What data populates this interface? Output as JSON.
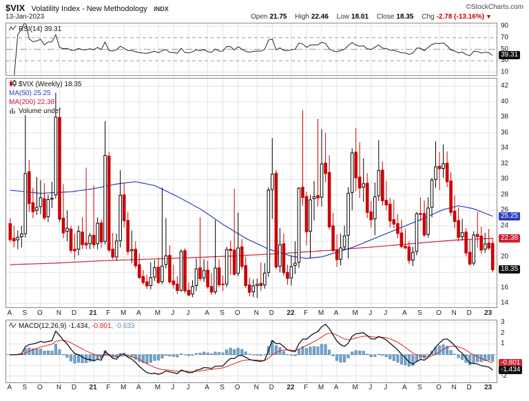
{
  "header": {
    "symbol": "$VIX",
    "name": "Volatility Index - New Methodology",
    "exchange": "INDX",
    "copyright": "©StockCharts.com",
    "date": "13-Jan-2023",
    "quote": {
      "open": {
        "label": "Open",
        "value": "21.75"
      },
      "high": {
        "label": "High",
        "value": "22.46"
      },
      "low": {
        "label": "Low",
        "value": "18.01"
      },
      "close": {
        "label": "Close",
        "value": "18.35"
      },
      "chg": {
        "label": "Chg",
        "value": "-2.78 (-13.16%)",
        "arrow": "▼"
      }
    }
  },
  "panels": {
    "rsi": {
      "legend": "RSI(14) 39.31",
      "axis": [
        90,
        70,
        50,
        30,
        10
      ],
      "levels_dashed": [
        70,
        30
      ],
      "level_dashdot": 50,
      "badge": {
        "text": "39.31",
        "value": 39.31,
        "color": "#111111"
      },
      "ylim": [
        5,
        95
      ]
    },
    "main": {
      "legend_symbol": "$VIX (Weekly) 18.35",
      "legend_ma50": "MA(50) 25.25",
      "legend_ma200": "MA(200) 22.38",
      "legend_volume": "Volume undef",
      "axis": [
        42,
        40,
        38,
        36,
        34,
        32,
        30,
        28,
        26,
        24,
        22,
        20,
        18,
        16,
        14
      ],
      "badges": [
        {
          "text": "25.25",
          "value": 25.25,
          "color": "#2b3fbf"
        },
        {
          "text": "22.38",
          "value": 22.38,
          "color": "#cc2233"
        },
        {
          "text": "18.35",
          "value": 18.35,
          "color": "#111111"
        }
      ],
      "ylim": [
        13.5,
        43
      ]
    },
    "macd": {
      "legend_name": "MACD(12,26,9)",
      "legend_v1": "-1.434,",
      "legend_v2": "-0.801,",
      "legend_v3": "-0.633",
      "axis": [
        3,
        2,
        1,
        -2
      ],
      "badges": [
        {
          "text": "-0.801",
          "value": -0.801,
          "color": "#cc2233"
        },
        {
          "text": "-1.434",
          "value": -1.434,
          "color": "#111111"
        }
      ],
      "ylim": [
        -2.6,
        3.2
      ]
    }
  },
  "xaxis": {
    "ticks": [
      {
        "label": "A",
        "i": 0
      },
      {
        "label": "S",
        "i": 4
      },
      {
        "label": "O",
        "i": 8
      },
      {
        "label": "N",
        "i": 13
      },
      {
        "label": "D",
        "i": 17
      },
      {
        "label": "21",
        "i": 22,
        "bold": true
      },
      {
        "label": "F",
        "i": 26
      },
      {
        "label": "M",
        "i": 30
      },
      {
        "label": "A",
        "i": 34
      },
      {
        "label": "M",
        "i": 39
      },
      {
        "label": "J",
        "i": 43
      },
      {
        "label": "J",
        "i": 47
      },
      {
        "label": "A",
        "i": 52
      },
      {
        "label": "S",
        "i": 56
      },
      {
        "label": "O",
        "i": 60
      },
      {
        "label": "N",
        "i": 65
      },
      {
        "label": "D",
        "i": 69
      },
      {
        "label": "22",
        "i": 74,
        "bold": true
      },
      {
        "label": "F",
        "i": 78
      },
      {
        "label": "M",
        "i": 82
      },
      {
        "label": "A",
        "i": 86
      },
      {
        "label": "M",
        "i": 91
      },
      {
        "label": "J",
        "i": 95
      },
      {
        "label": "J",
        "i": 99
      },
      {
        "label": "A",
        "i": 104
      },
      {
        "label": "S",
        "i": 108
      },
      {
        "label": "O",
        "i": 113
      },
      {
        "label": "N",
        "i": 117
      },
      {
        "label": "D",
        "i": 121
      },
      {
        "label": "23",
        "i": 126,
        "bold": true
      }
    ]
  },
  "colors": {
    "up": "#000000",
    "down": "#cc0000",
    "ma50": "#2b3fbf",
    "ma200": "#cc2233",
    "rsi": "#222222",
    "macd_line": "#111111",
    "macd_signal": "#dd2222",
    "macd_hist": "#72a3cc",
    "macd_hist_edge": "#4d7ea8",
    "macd_hist_text": "#5b90bd",
    "grid": "#e3e3e3",
    "level": "#999999"
  },
  "chart_data": {
    "type": "candlestick",
    "title": "$VIX Volatility Index - New Methodology (Weekly)",
    "x_range": "Aug-2020 to 13-Jan-2023, weekly bars",
    "series_legend": [
      "$VIX (Weekly) 18.35",
      "MA(50) 25.25",
      "MA(200) 22.38",
      "Volume undef",
      "RSI(14) 39.31",
      "MACD(12,26,9) -1.434, -0.801, -0.633"
    ],
    "ylim": [
      13.5,
      43
    ],
    "ohlc": [
      [
        24.3,
        25.0,
        21.9,
        22.21
      ],
      [
        22.4,
        24.0,
        21.2,
        22.05
      ],
      [
        22.2,
        23.4,
        21.0,
        22.54
      ],
      [
        22.6,
        24.0,
        21.2,
        22.96
      ],
      [
        23.0,
        38.28,
        22.5,
        30.75
      ],
      [
        31.0,
        32.5,
        25.8,
        26.87
      ],
      [
        27.0,
        28.9,
        25.0,
        25.83
      ],
      [
        26.0,
        30.3,
        25.4,
        26.38
      ],
      [
        26.5,
        29.9,
        25.5,
        27.63
      ],
      [
        27.5,
        29.5,
        24.8,
        25.0
      ],
      [
        25.2,
        28.0,
        24.5,
        27.41
      ],
      [
        27.5,
        29.7,
        26.3,
        27.55
      ],
      [
        28.0,
        41.16,
        27.5,
        38.02
      ],
      [
        38.0,
        38.8,
        24.5,
        24.86
      ],
      [
        25.0,
        29.4,
        22.4,
        23.1
      ],
      [
        23.3,
        26.0,
        22.0,
        23.7
      ],
      [
        23.6,
        24.0,
        20.5,
        20.84
      ],
      [
        21.0,
        23.0,
        19.7,
        20.79
      ],
      [
        21.0,
        24.0,
        20.2,
        23.31
      ],
      [
        23.2,
        25.1,
        21.0,
        21.57
      ],
      [
        21.8,
        31.5,
        21.0,
        21.53
      ],
      [
        21.7,
        23.1,
        21.0,
        22.75
      ],
      [
        22.8,
        29.2,
        21.1,
        21.56
      ],
      [
        21.7,
        25.1,
        21.0,
        24.34
      ],
      [
        24.4,
        24.8,
        21.2,
        21.91
      ],
      [
        22.0,
        37.51,
        21.6,
        33.09
      ],
      [
        33.0,
        33.5,
        20.6,
        20.87
      ],
      [
        21.0,
        23.1,
        19.7,
        19.97
      ],
      [
        20.0,
        23.0,
        19.5,
        22.05
      ],
      [
        22.1,
        31.2,
        21.2,
        27.95
      ],
      [
        28.0,
        29.6,
        23.8,
        24.66
      ],
      [
        24.7,
        25.8,
        20.3,
        20.69
      ],
      [
        20.8,
        23.4,
        19.2,
        20.95
      ],
      [
        21.0,
        22.0,
        18.5,
        18.86
      ],
      [
        19.0,
        20.4,
        17.2,
        17.33
      ],
      [
        17.5,
        18.3,
        16.4,
        16.69
      ],
      [
        16.8,
        17.7,
        15.9,
        16.25
      ],
      [
        16.3,
        19.3,
        15.8,
        17.33
      ],
      [
        17.4,
        19.6,
        16.9,
        18.61
      ],
      [
        18.7,
        19.9,
        16.5,
        16.69
      ],
      [
        16.8,
        28.93,
        16.5,
        18.81
      ],
      [
        19.0,
        25.0,
        18.5,
        20.15
      ],
      [
        20.2,
        21.5,
        16.5,
        16.76
      ],
      [
        16.9,
        19.0,
        15.9,
        16.42
      ],
      [
        16.5,
        17.5,
        15.2,
        15.65
      ],
      [
        15.7,
        21.0,
        15.5,
        20.7
      ],
      [
        20.8,
        21.1,
        15.3,
        15.62
      ],
      [
        15.7,
        16.7,
        14.9,
        15.07
      ],
      [
        15.2,
        17.0,
        14.8,
        16.18
      ],
      [
        16.3,
        19.8,
        15.6,
        18.45
      ],
      [
        18.6,
        25.09,
        16.9,
        17.2
      ],
      [
        17.3,
        19.7,
        16.8,
        18.24
      ],
      [
        18.3,
        19.5,
        15.9,
        16.15
      ],
      [
        16.2,
        17.9,
        15.1,
        15.45
      ],
      [
        15.5,
        24.74,
        15.2,
        18.56
      ],
      [
        18.6,
        19.7,
        16.1,
        16.39
      ],
      [
        16.5,
        17.6,
        15.6,
        16.41
      ],
      [
        16.5,
        21.3,
        16.1,
        20.95
      ],
      [
        21.0,
        22.1,
        17.7,
        20.81
      ],
      [
        20.9,
        28.79,
        17.6,
        17.75
      ],
      [
        17.9,
        25.7,
        17.5,
        21.15
      ],
      [
        21.3,
        22.3,
        18.4,
        18.77
      ],
      [
        18.9,
        20.0,
        16.0,
        16.3
      ],
      [
        16.4,
        17.3,
        14.9,
        15.43
      ],
      [
        15.5,
        17.1,
        14.8,
        16.26
      ],
      [
        16.3,
        17.2,
        14.7,
        16.48
      ],
      [
        16.6,
        19.3,
        15.6,
        16.29
      ],
      [
        16.4,
        19.2,
        15.9,
        17.91
      ],
      [
        18.0,
        28.99,
        17.4,
        28.62
      ],
      [
        28.7,
        35.32,
        24.9,
        30.67
      ],
      [
        30.8,
        31.2,
        18.4,
        18.69
      ],
      [
        18.8,
        23.7,
        18.0,
        21.57
      ],
      [
        21.7,
        23.0,
        17.6,
        17.96
      ],
      [
        18.0,
        19.0,
        16.4,
        17.22
      ],
      [
        17.3,
        20.2,
        16.3,
        18.76
      ],
      [
        18.9,
        22.0,
        17.8,
        19.19
      ],
      [
        19.3,
        29.0,
        18.6,
        28.85
      ],
      [
        29.0,
        38.94,
        26.6,
        27.66
      ],
      [
        27.8,
        28.4,
        21.5,
        23.22
      ],
      [
        23.3,
        28.0,
        19.8,
        27.36
      ],
      [
        27.5,
        29.8,
        24.7,
        27.75
      ],
      [
        27.9,
        37.79,
        26.5,
        27.59
      ],
      [
        27.7,
        36.5,
        26.5,
        31.98
      ],
      [
        32.1,
        36.0,
        29.6,
        30.75
      ],
      [
        30.9,
        33.1,
        23.5,
        23.87
      ],
      [
        24.0,
        25.7,
        20.6,
        20.81
      ],
      [
        20.9,
        22.9,
        18.7,
        19.63
      ],
      [
        19.7,
        23.0,
        18.9,
        21.16
      ],
      [
        21.3,
        24.0,
        20.9,
        22.7
      ],
      [
        22.8,
        29.0,
        19.8,
        28.21
      ],
      [
        28.3,
        34.0,
        26.0,
        33.4
      ],
      [
        33.5,
        36.64,
        28.5,
        30.19
      ],
      [
        30.3,
        34.8,
        27.6,
        28.87
      ],
      [
        29.0,
        32.7,
        27.1,
        29.43
      ],
      [
        29.5,
        30.8,
        25.0,
        25.72
      ],
      [
        25.8,
        27.2,
        23.8,
        24.79
      ],
      [
        24.9,
        29.6,
        22.8,
        27.75
      ],
      [
        27.9,
        35.05,
        27.2,
        31.13
      ],
      [
        31.2,
        32.3,
        26.6,
        27.23
      ],
      [
        27.3,
        29.8,
        26.0,
        26.7
      ],
      [
        26.8,
        27.6,
        23.8,
        24.64
      ],
      [
        24.8,
        27.4,
        23.7,
        24.23
      ],
      [
        24.3,
        25.5,
        22.4,
        23.03
      ],
      [
        23.1,
        24.8,
        21.1,
        21.33
      ],
      [
        21.4,
        23.6,
        21.0,
        21.15
      ],
      [
        21.3,
        22.0,
        19.1,
        19.53
      ],
      [
        19.6,
        21.3,
        18.8,
        20.6
      ],
      [
        20.7,
        25.8,
        20.2,
        25.56
      ],
      [
        25.6,
        27.7,
        24.6,
        25.47
      ],
      [
        25.6,
        27.3,
        22.6,
        22.79
      ],
      [
        22.9,
        27.7,
        22.5,
        26.3
      ],
      [
        26.4,
        30.2,
        25.1,
        29.92
      ],
      [
        30.0,
        34.9,
        28.9,
        31.62
      ],
      [
        31.7,
        33.5,
        28.6,
        31.36
      ],
      [
        31.4,
        34.5,
        30.2,
        32.02
      ],
      [
        32.1,
        33.6,
        29.0,
        29.69
      ],
      [
        29.8,
        30.9,
        25.3,
        25.75
      ],
      [
        25.9,
        27.9,
        23.7,
        24.55
      ],
      [
        24.7,
        26.4,
        22.0,
        22.52
      ],
      [
        22.6,
        24.9,
        22.1,
        23.12
      ],
      [
        23.2,
        23.7,
        20.1,
        20.5
      ],
      [
        20.6,
        22.3,
        18.9,
        19.06
      ],
      [
        19.2,
        23.3,
        18.9,
        22.83
      ],
      [
        22.9,
        25.8,
        21.2,
        22.62
      ],
      [
        22.7,
        23.9,
        20.4,
        20.87
      ],
      [
        21.0,
        23.1,
        20.5,
        21.67
      ],
      [
        21.8,
        23.6,
        20.9,
        21.13
      ],
      [
        21.75,
        22.46,
        18.01,
        18.35
      ]
    ],
    "overlays": {
      "ma50": {
        "last": 25.25,
        "points": [
          [
            0,
            28.6
          ],
          [
            8,
            28.2
          ],
          [
            16,
            28.4
          ],
          [
            22,
            28.8
          ],
          [
            28,
            29.4
          ],
          [
            33,
            29.7
          ],
          [
            38,
            29.2
          ],
          [
            44,
            27.8
          ],
          [
            50,
            26.2
          ],
          [
            56,
            24.2
          ],
          [
            62,
            22.4
          ],
          [
            68,
            21.0
          ],
          [
            74,
            20.1
          ],
          [
            78,
            19.8
          ],
          [
            82,
            20.0
          ],
          [
            86,
            20.6
          ],
          [
            90,
            21.2
          ],
          [
            96,
            22.4
          ],
          [
            102,
            23.6
          ],
          [
            108,
            24.8
          ],
          [
            114,
            26.1
          ],
          [
            118,
            26.6
          ],
          [
            122,
            26.2
          ],
          [
            127,
            25.25
          ]
        ]
      },
      "ma200": {
        "last": 22.38,
        "points": [
          [
            0,
            19.0
          ],
          [
            12,
            19.2
          ],
          [
            24,
            19.5
          ],
          [
            36,
            19.7
          ],
          [
            48,
            19.9
          ],
          [
            60,
            20.15
          ],
          [
            72,
            20.45
          ],
          [
            84,
            20.85
          ],
          [
            96,
            21.3
          ],
          [
            108,
            21.8
          ],
          [
            118,
            22.2
          ],
          [
            127,
            22.38
          ]
        ]
      }
    },
    "indicators": {
      "rsi": {
        "period": 14,
        "last": 39.31
      },
      "macd": {
        "fast": 12,
        "slow": 26,
        "signal": 9,
        "last_macd": -1.434,
        "last_signal": -0.801,
        "last_hist": -0.633
      }
    }
  }
}
